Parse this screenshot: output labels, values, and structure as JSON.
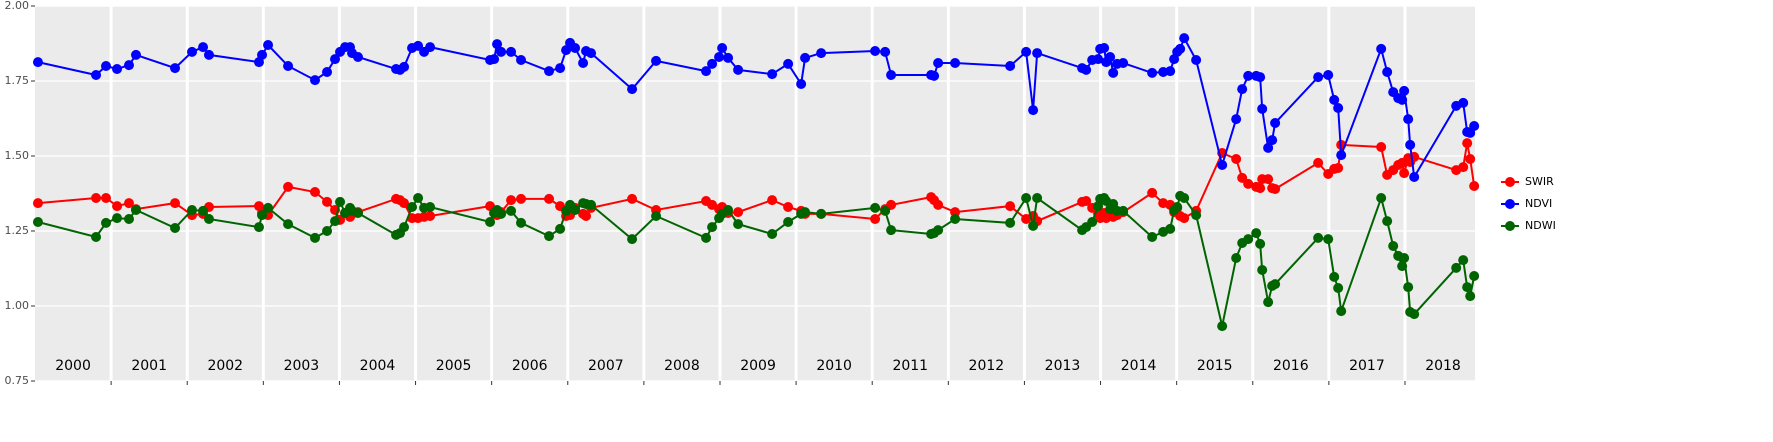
{
  "chart_data": {
    "type": "line",
    "x": [
      2000.039,
      2000.802,
      2000.933,
      2001.078,
      2001.235,
      2001.327,
      2001.84,
      2002.063,
      2002.208,
      2002.286,
      2002.943,
      2002.983,
      2003.062,
      2003.325,
      2003.679,
      2003.837,
      2003.942,
      2004.008,
      2004.074,
      2004.139,
      2004.166,
      2004.244,
      2004.744,
      2004.796,
      2004.849,
      2004.954,
      2005.033,
      2005.112,
      2005.191,
      2005.979,
      2006.032,
      2006.071,
      2006.124,
      2006.255,
      2006.386,
      2006.754,
      2006.899,
      2006.978,
      2007.03,
      2007.096,
      2007.201,
      2007.24,
      2007.306,
      2007.845,
      2008.16,
      2008.817,
      2008.896,
      2008.988,
      2009.028,
      2009.106,
      2009.238,
      2009.685,
      2009.895,
      2010.066,
      2010.118,
      2010.329,
      2011.038,
      2011.17,
      2011.248,
      2011.774,
      2011.813,
      2011.866,
      2012.089,
      2012.812,
      2013.022,
      2013.114,
      2013.167,
      2013.758,
      2013.811,
      2013.89,
      2013.968,
      2013.995,
      2014.047,
      2014.074,
      2014.126,
      2014.166,
      2014.218,
      2014.297,
      2014.678,
      2014.823,
      2014.915,
      2014.967,
      2015.007,
      2015.046,
      2015.099,
      2015.256,
      2015.598,
      2015.782,
      2015.861,
      2015.94,
      2016.045,
      2016.097,
      2016.124,
      2016.202,
      2016.255,
      2016.294,
      2016.859,
      2016.991,
      2017.07,
      2017.122,
      2017.162,
      2017.687,
      2017.766,
      2017.845,
      2017.911,
      2017.963,
      2017.989,
      2018.042,
      2018.068,
      2018.121,
      2018.673,
      2018.765,
      2018.817,
      2018.857,
      2018.909
    ],
    "series": [
      {
        "name": "SWIR",
        "color": "#ff0000",
        "values": [
          1.343,
          1.36,
          1.36,
          1.333,
          1.343,
          1.323,
          1.343,
          1.303,
          1.307,
          1.33,
          1.333,
          1.31,
          1.303,
          1.397,
          1.38,
          1.347,
          1.32,
          1.287,
          1.31,
          1.297,
          1.307,
          1.313,
          1.357,
          1.353,
          1.343,
          1.293,
          1.293,
          1.297,
          1.3,
          1.333,
          1.31,
          1.303,
          1.313,
          1.353,
          1.357,
          1.357,
          1.333,
          1.3,
          1.303,
          1.327,
          1.307,
          1.3,
          1.327,
          1.357,
          1.32,
          1.35,
          1.337,
          1.323,
          1.33,
          1.31,
          1.313,
          1.353,
          1.33,
          1.317,
          1.307,
          1.307,
          1.29,
          1.323,
          1.337,
          1.363,
          1.353,
          1.337,
          1.313,
          1.333,
          1.29,
          1.3,
          1.283,
          1.347,
          1.35,
          1.327,
          1.307,
          1.293,
          1.31,
          1.293,
          1.313,
          1.297,
          1.303,
          1.313,
          1.377,
          1.343,
          1.337,
          1.313,
          1.327,
          1.3,
          1.293,
          1.317,
          1.51,
          1.49,
          1.427,
          1.407,
          1.397,
          1.393,
          1.423,
          1.423,
          1.393,
          1.39,
          1.477,
          1.44,
          1.457,
          1.46,
          1.537,
          1.53,
          1.437,
          1.453,
          1.47,
          1.477,
          1.443,
          1.493,
          1.48,
          1.497,
          1.453,
          1.463,
          1.543,
          1.49,
          1.4
        ]
      },
      {
        "name": "NDVI",
        "color": "#0000ff",
        "values": [
          1.813,
          1.77,
          1.8,
          1.79,
          1.803,
          1.837,
          1.793,
          1.847,
          1.863,
          1.837,
          1.813,
          1.837,
          1.87,
          1.8,
          1.753,
          1.78,
          1.823,
          1.847,
          1.863,
          1.863,
          1.843,
          1.83,
          1.79,
          1.787,
          1.797,
          1.86,
          1.867,
          1.847,
          1.863,
          1.82,
          1.823,
          1.873,
          1.847,
          1.847,
          1.82,
          1.783,
          1.793,
          1.853,
          1.877,
          1.86,
          1.81,
          1.85,
          1.843,
          1.723,
          1.817,
          1.783,
          1.807,
          1.83,
          1.86,
          1.827,
          1.787,
          1.773,
          1.807,
          1.74,
          1.827,
          1.843,
          1.85,
          1.847,
          1.77,
          1.77,
          1.767,
          1.81,
          1.81,
          1.8,
          1.847,
          1.653,
          1.843,
          1.793,
          1.787,
          1.82,
          1.823,
          1.857,
          1.86,
          1.813,
          1.83,
          1.777,
          1.807,
          1.81,
          1.777,
          1.78,
          1.783,
          1.823,
          1.847,
          1.857,
          1.893,
          1.82,
          1.47,
          1.623,
          1.723,
          1.767,
          1.767,
          1.763,
          1.657,
          1.527,
          1.553,
          1.61,
          1.763,
          1.77,
          1.687,
          1.66,
          1.503,
          1.857,
          1.78,
          1.713,
          1.693,
          1.687,
          1.717,
          1.623,
          1.537,
          1.43,
          1.667,
          1.677,
          1.58,
          1.577,
          1.6
        ]
      },
      {
        "name": "NDWI",
        "color": "#006400",
        "values": [
          1.28,
          1.23,
          1.277,
          1.293,
          1.29,
          1.32,
          1.26,
          1.32,
          1.317,
          1.29,
          1.263,
          1.303,
          1.327,
          1.273,
          1.227,
          1.25,
          1.283,
          1.347,
          1.31,
          1.327,
          1.317,
          1.31,
          1.237,
          1.243,
          1.263,
          1.33,
          1.36,
          1.327,
          1.33,
          1.28,
          1.31,
          1.32,
          1.307,
          1.317,
          1.277,
          1.233,
          1.257,
          1.317,
          1.337,
          1.32,
          1.343,
          1.34,
          1.337,
          1.223,
          1.3,
          1.227,
          1.263,
          1.293,
          1.307,
          1.32,
          1.273,
          1.24,
          1.28,
          1.307,
          1.313,
          1.307,
          1.327,
          1.317,
          1.253,
          1.24,
          1.243,
          1.253,
          1.29,
          1.277,
          1.36,
          1.267,
          1.36,
          1.253,
          1.263,
          1.28,
          1.333,
          1.357,
          1.36,
          1.35,
          1.323,
          1.34,
          1.317,
          1.317,
          1.23,
          1.247,
          1.257,
          1.32,
          1.33,
          1.367,
          1.36,
          1.303,
          0.933,
          1.16,
          1.21,
          1.223,
          1.243,
          1.207,
          1.12,
          1.013,
          1.067,
          1.073,
          1.227,
          1.223,
          1.097,
          1.06,
          0.983,
          1.36,
          1.283,
          1.2,
          1.167,
          1.133,
          1.16,
          1.063,
          0.98,
          0.973,
          1.127,
          1.153,
          1.063,
          1.033,
          1.1
        ]
      }
    ],
    "xlim": [
      2000,
      2018.92
    ],
    "xticks": [
      2001,
      2002,
      2003,
      2004,
      2005,
      2006,
      2007,
      2008,
      2009,
      2010,
      2011,
      2012,
      2013,
      2014,
      2015,
      2016,
      2017,
      2018
    ],
    "ylim": [
      0.75,
      2.0
    ],
    "yticks": [
      {
        "value": 0.75,
        "label": "0.75"
      },
      {
        "value": 1.0,
        "label": "1.00"
      },
      {
        "value": 1.25,
        "label": "1.25"
      },
      {
        "value": 1.5,
        "label": "1.50"
      },
      {
        "value": 1.75,
        "label": "1.75"
      },
      {
        "value": 2.0,
        "label": "2.00"
      }
    ],
    "annotations": [
      {
        "x": 2000.5,
        "text": "2000"
      },
      {
        "x": 2001.5,
        "text": "2001"
      },
      {
        "x": 2002.5,
        "text": "2002"
      },
      {
        "x": 2003.5,
        "text": "2003"
      },
      {
        "x": 2004.5,
        "text": "2004"
      },
      {
        "x": 2005.5,
        "text": "2005"
      },
      {
        "x": 2006.5,
        "text": "2006"
      },
      {
        "x": 2007.5,
        "text": "2007"
      },
      {
        "x": 2008.5,
        "text": "2008"
      },
      {
        "x": 2009.5,
        "text": "2009"
      },
      {
        "x": 2010.5,
        "text": "2010"
      },
      {
        "x": 2011.5,
        "text": "2011"
      },
      {
        "x": 2012.5,
        "text": "2012"
      },
      {
        "x": 2013.5,
        "text": "2013"
      },
      {
        "x": 2014.5,
        "text": "2014"
      },
      {
        "x": 2015.5,
        "text": "2015"
      },
      {
        "x": 2016.5,
        "text": "2016"
      },
      {
        "x": 2017.5,
        "text": "2017"
      },
      {
        "x": 2018.5,
        "text": "2018"
      }
    ],
    "grid": true,
    "legend": "right"
  }
}
